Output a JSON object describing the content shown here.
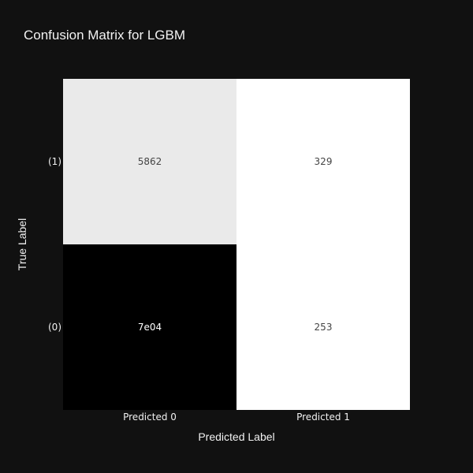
{
  "chart_data": {
    "type": "heatmap",
    "title": "Confusion Matrix for LGBM",
    "xlabel": "Predicted Label",
    "ylabel": "True Label",
    "x_categories": [
      "Predicted 0",
      "Predicted 1"
    ],
    "y_categories": [
      "(1)",
      "(0)"
    ],
    "cells": [
      [
        {
          "label": "5862",
          "value": 5862
        },
        {
          "label": "329",
          "value": 329
        }
      ],
      [
        {
          "label": "7e04",
          "value": 70000
        },
        {
          "label": "253",
          "value": 253
        }
      ]
    ],
    "colorscale": {
      "low": "#ffffff",
      "high": "#000000"
    },
    "grid": false,
    "legend": "none",
    "background": "#111111",
    "text_color": "#f2f2f2",
    "annotation_dark_text_color": "#444444",
    "annotation_light_text_color": "#ffffff"
  }
}
